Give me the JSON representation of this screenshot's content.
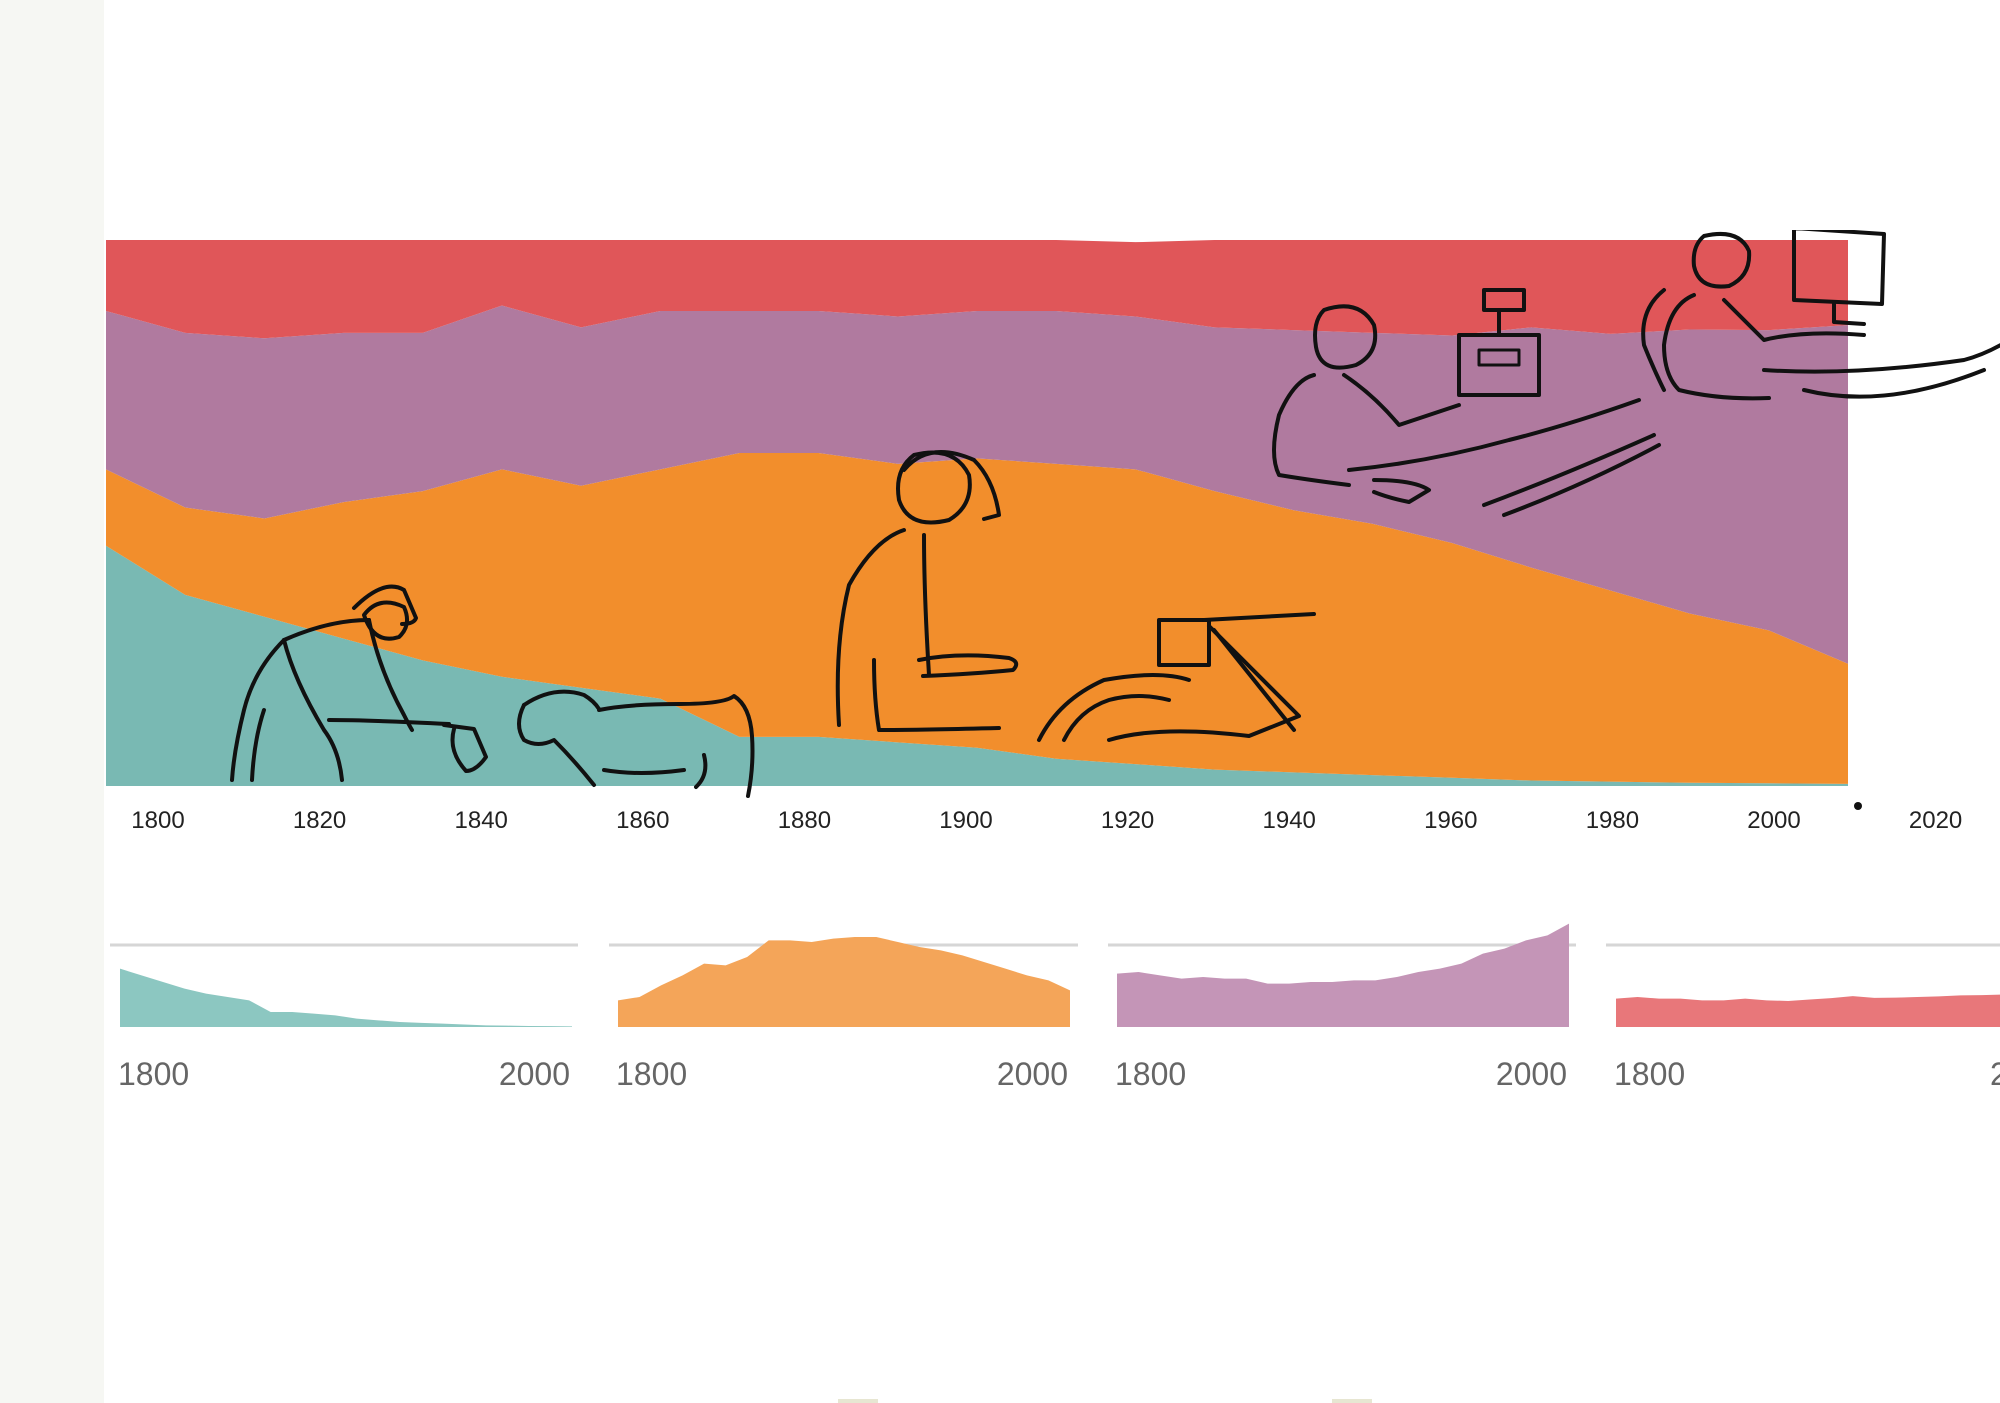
{
  "chart_data": [
    {
      "type": "area",
      "stacked": "percent",
      "x": [
        1790,
        1800,
        1810,
        1820,
        1830,
        1840,
        1850,
        1860,
        1870,
        1880,
        1890,
        1900,
        1910,
        1920,
        1930,
        1940,
        1950,
        1960,
        1970,
        1980,
        1990,
        2000,
        2010
      ],
      "xticks": [
        1800,
        1820,
        1840,
        1860,
        1880,
        1900,
        1920,
        1940,
        1960,
        1980,
        2000,
        2020
      ],
      "xlim": [
        1790,
        2010
      ],
      "ylim": [
        0,
        100
      ],
      "series": [
        {
          "color": "#79b9b3",
          "values": [
            44,
            35,
            31,
            27,
            23,
            20,
            18,
            16,
            9,
            9,
            8,
            7,
            5,
            4,
            3,
            2.5,
            2,
            1.5,
            1,
            0.8,
            0.6,
            0.5,
            0.4
          ]
        },
        {
          "color": "#f28e2c",
          "values": [
            14,
            16,
            18,
            25,
            31,
            38,
            37,
            42,
            52,
            52,
            51,
            53,
            54,
            54,
            51,
            48,
            46,
            43,
            39,
            35,
            31,
            28,
            22
          ]
        },
        {
          "color": "#b07a9f",
          "values": [
            29,
            32,
            33,
            31,
            29,
            30,
            29,
            29,
            26,
            26,
            27,
            27,
            28,
            28,
            30,
            33,
            35,
            38,
            44,
            47,
            52,
            55,
            62
          ]
        },
        {
          "color": "#e05659",
          "values": [
            13,
            17,
            18,
            17,
            17,
            12,
            16,
            13,
            13,
            13,
            14,
            13,
            13,
            13.6,
            16,
            16.5,
            17,
            17.5,
            16,
            17.2,
            16.4,
            16.5,
            15.6
          ]
        }
      ],
      "grid": false,
      "legend": "none"
    },
    {
      "type": "area",
      "color": "#8cc7c1",
      "x": [
        1800,
        1810,
        1820,
        1830,
        1840,
        1850,
        1860,
        1870,
        1880,
        1890,
        1900,
        1910,
        1920,
        1930,
        1940,
        1950,
        1960,
        1970,
        1980,
        1990,
        2000,
        2010
      ],
      "values": [
        35,
        31,
        27,
        23,
        20,
        18,
        16,
        9,
        9,
        8,
        7,
        5,
        4,
        3,
        2.5,
        2,
        1.5,
        1,
        0.8,
        0.6,
        0.5,
        0.4
      ],
      "xticks": [
        "1800",
        "2000"
      ],
      "ylim": [
        0,
        60
      ]
    },
    {
      "type": "area",
      "color": "#f4a559",
      "x": [
        1800,
        1810,
        1820,
        1830,
        1840,
        1850,
        1860,
        1870,
        1880,
        1890,
        1900,
        1910,
        1920,
        1930,
        1940,
        1950,
        1960,
        1970,
        1980,
        1990,
        2000,
        2010
      ],
      "values": [
        16,
        18,
        25,
        31,
        38,
        37,
        42,
        52,
        52,
        51,
        53,
        54,
        54,
        51,
        48,
        46,
        43,
        39,
        35,
        31,
        28,
        22
      ],
      "xticks": [
        "1800",
        "2000"
      ],
      "ylim": [
        0,
        60
      ]
    },
    {
      "type": "area",
      "color": "#c495b7",
      "x": [
        1800,
        1810,
        1820,
        1830,
        1840,
        1850,
        1860,
        1870,
        1880,
        1890,
        1900,
        1910,
        1920,
        1930,
        1940,
        1950,
        1960,
        1970,
        1980,
        1990,
        2000,
        2010
      ],
      "values": [
        32,
        33,
        31,
        29,
        30,
        29,
        29,
        26,
        26,
        27,
        27,
        28,
        28,
        30,
        33,
        35,
        38,
        44,
        47,
        52,
        55,
        62
      ],
      "xticks": [
        "1800",
        "2000"
      ],
      "ylim": [
        0,
        60
      ]
    },
    {
      "type": "area",
      "color": "#e8777a",
      "x": [
        1800,
        1810,
        1820,
        1830,
        1840,
        1850,
        1860,
        1870,
        1880,
        1890,
        1900,
        1910,
        1920,
        1930,
        1940,
        1950,
        1960,
        1970,
        1980,
        1990,
        2000,
        2010
      ],
      "values": [
        17,
        18,
        17,
        17,
        16,
        16,
        17,
        16,
        15.6,
        16.5,
        17.3,
        18.5,
        17.5,
        17.6,
        18,
        18.4,
        19,
        19.1,
        19.5,
        20,
        21,
        25
      ],
      "xticks": [
        "1800",
        "2"
      ],
      "ylim": [
        0,
        60
      ]
    }
  ]
}
